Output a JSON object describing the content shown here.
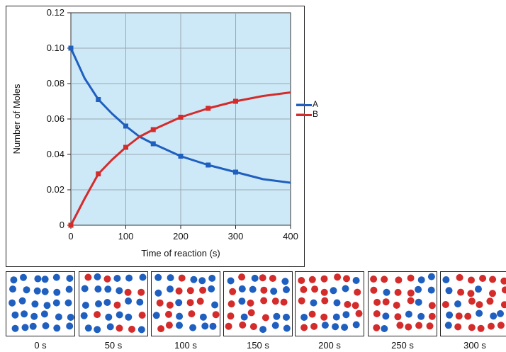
{
  "chart_data": {
    "type": "line",
    "xlabel": "Time of reaction (s)",
    "ylabel": "Number of Moles",
    "xlim": [
      0,
      400
    ],
    "ylim": [
      0,
      0.12
    ],
    "xticks": [
      0,
      100,
      200,
      300,
      400
    ],
    "yticks": [
      0,
      0.02,
      0.04,
      0.06,
      0.08,
      0.1,
      0.12
    ],
    "ytick_labels": [
      "0",
      "0.02",
      "0.04",
      "0.06",
      "0.08",
      "0.10",
      "0.12"
    ],
    "xtick_labels": [
      "0",
      "100",
      "200",
      "300",
      "400"
    ],
    "grid": true,
    "legend_position": "right",
    "series": [
      {
        "name": "A",
        "color": "#1f5fbf",
        "x": [
          0,
          25,
          50,
          75,
          100,
          125,
          150,
          200,
          250,
          300,
          350,
          400
        ],
        "y": [
          0.1,
          0.083,
          0.071,
          0.063,
          0.056,
          0.05,
          0.046,
          0.039,
          0.034,
          0.03,
          0.026,
          0.024
        ],
        "markers_x": [
          0,
          50,
          100,
          150,
          200,
          250,
          300
        ],
        "markers_y": [
          0.1,
          0.071,
          0.056,
          0.046,
          0.039,
          0.034,
          0.03
        ]
      },
      {
        "name": "B",
        "color": "#d42b2b",
        "x": [
          0,
          25,
          50,
          75,
          100,
          125,
          150,
          200,
          250,
          300,
          350,
          400
        ],
        "y": [
          0.0,
          0.015,
          0.029,
          0.037,
          0.044,
          0.05,
          0.054,
          0.061,
          0.066,
          0.07,
          0.073,
          0.075
        ],
        "markers_x": [
          0,
          50,
          100,
          150,
          200,
          250,
          300
        ],
        "markers_y": [
          0.0,
          0.029,
          0.044,
          0.054,
          0.061,
          0.066,
          0.07
        ]
      }
    ]
  },
  "snapshots": [
    {
      "label": "0 s",
      "a_fraction": 1.0
    },
    {
      "label": "50 s",
      "a_fraction": 0.71
    },
    {
      "label": "100 s",
      "a_fraction": 0.56
    },
    {
      "label": "150 s",
      "a_fraction": 0.46
    },
    {
      "label": "200 s",
      "a_fraction": 0.39
    },
    {
      "label": "250 s",
      "a_fraction": 0.34
    },
    {
      "label": "300 s",
      "a_fraction": 0.3
    }
  ],
  "colors": {
    "plot_background": "#cde9f7",
    "grid": "#9aa8b3",
    "molecule_a": "#1f5fbf",
    "molecule_b": "#d42b2b"
  }
}
